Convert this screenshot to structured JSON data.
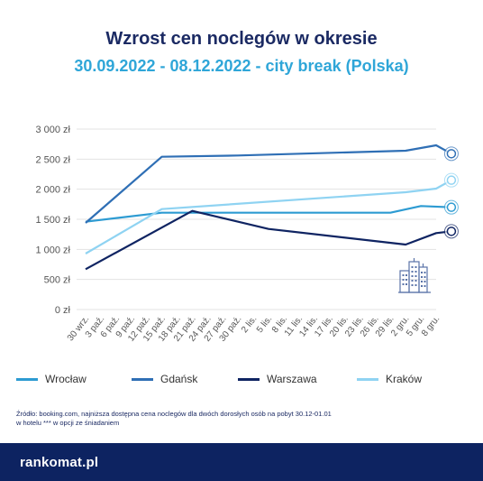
{
  "title": "Wzrost cen noclegów w okresie",
  "subtitle": "30.09.2022 - 08.12.2022 - city break (Polska)",
  "source_line1": "Źródło: booking.com, najniższa dostępna cena noclegów dla dwóch dorosłych osób na pobyt 30.12-01.01",
  "source_line2": "w hotelu *** w opcji ze śniadaniem",
  "brand": "rankomat.pl",
  "chart_data": {
    "type": "line",
    "categories": [
      "30 wrz.",
      "3 paź.",
      "6 paź.",
      "9 paź.",
      "12 paź.",
      "15 paź.",
      "18 paź.",
      "21 paź.",
      "24 paź.",
      "27 paź.",
      "30 paź.",
      "2 lis.",
      "5 lis.",
      "8 lis.",
      "11 lis.",
      "14 lis.",
      "17 lis.",
      "20 lis.",
      "23 lis.",
      "26 lis.",
      "29 lis.",
      "2 gru.",
      "5 gru.",
      "8 gru."
    ],
    "y_ticks": [
      "0 zł",
      "500 zł",
      "1 000 zł",
      "1 500 zł",
      "2 000 zł",
      "2 500 zł",
      "3 000 zł"
    ],
    "ylim": [
      0,
      3000
    ],
    "grid": true,
    "legend_position": "bottom",
    "series": [
      {
        "name": "Wrocław",
        "color": "#2d9bd2",
        "points": [
          [
            0,
            1460
          ],
          [
            5,
            1610
          ],
          [
            20,
            1610
          ],
          [
            22,
            1720
          ],
          [
            24,
            1700
          ]
        ]
      },
      {
        "name": "Gdańsk",
        "color": "#2f6fb5",
        "points": [
          [
            0,
            1440
          ],
          [
            5,
            2540
          ],
          [
            10,
            2560
          ],
          [
            21,
            2640
          ],
          [
            23,
            2730
          ],
          [
            24,
            2590
          ]
        ]
      },
      {
        "name": "Warszawa",
        "color": "#0f2462",
        "points": [
          [
            0,
            670
          ],
          [
            7,
            1640
          ],
          [
            12,
            1340
          ],
          [
            21,
            1080
          ],
          [
            23,
            1270
          ],
          [
            24,
            1300
          ]
        ]
      },
      {
        "name": "Kraków",
        "color": "#8fd3f2",
        "points": [
          [
            0,
            930
          ],
          [
            5,
            1670
          ],
          [
            21,
            1950
          ],
          [
            23,
            2010
          ],
          [
            24,
            2150
          ]
        ]
      }
    ]
  }
}
